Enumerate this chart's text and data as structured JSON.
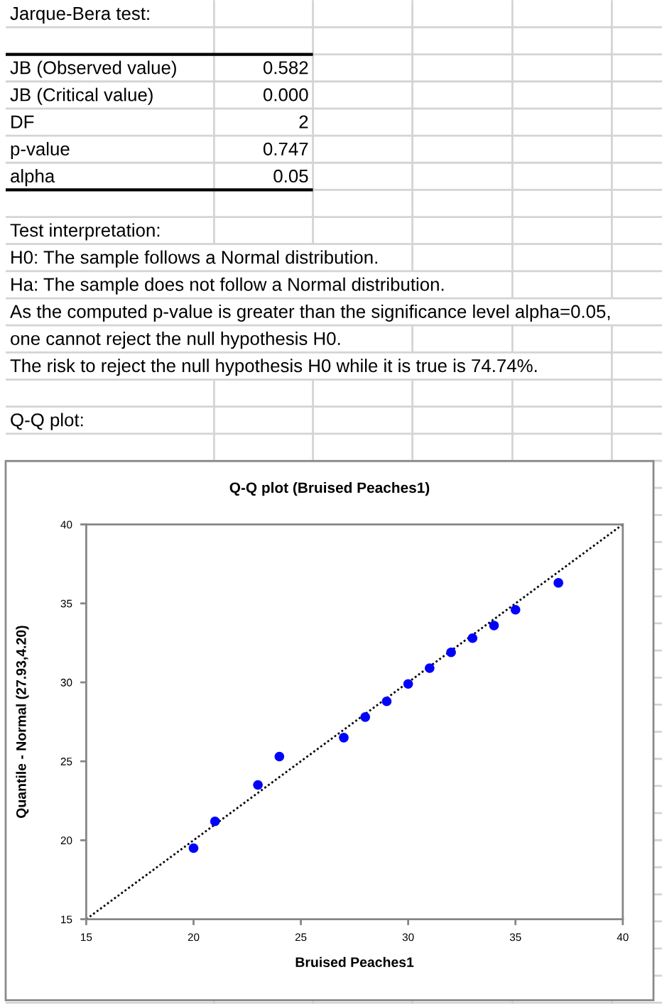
{
  "chart_data": {
    "type": "scatter",
    "title": "Q-Q plot (Bruised Peaches1)",
    "xlabel": "Bruised Peaches1",
    "ylabel": "Quantile - Normal (27.93,4.20)",
    "xlim": [
      15,
      40
    ],
    "ylim": [
      15,
      40
    ],
    "xticks": [
      15,
      20,
      25,
      30,
      35,
      40
    ],
    "yticks": [
      15,
      20,
      25,
      30,
      35,
      40
    ],
    "marker": "circle",
    "series": [
      {
        "color": "#0000ff",
        "x": [
          20,
          21,
          23,
          24,
          27,
          28,
          29,
          30,
          31,
          32,
          33,
          34,
          35,
          37
        ],
        "values": [
          19.5,
          21.2,
          23.5,
          25.3,
          26.5,
          27.8,
          28.8,
          29.9,
          30.9,
          31.9,
          32.8,
          33.6,
          34.6,
          36.3
        ]
      },
      {
        "type": "line",
        "color": "#000000",
        "line_style": "dotted",
        "marker": "none",
        "x": [
          15,
          40
        ],
        "values": [
          15,
          40
        ]
      }
    ],
    "annotations": [
      "Jarque-Bera test:",
      "JB (Observed value)",
      "0.582",
      "JB (Critical value)",
      "0.000",
      "DF",
      "2",
      "p-value",
      "0.747",
      "alpha",
      "0.05",
      "Test interpretation:",
      "H0: The sample follows a Normal distribution.",
      "Ha: The sample does not follow a Normal distribution.",
      "As the computed p-value is greater than the significance level alpha=0.05,",
      "one cannot reject the null hypothesis H0.",
      "The risk to reject the null hypothesis H0 while it is true is 74.74%.",
      "Q-Q plot:"
    ]
  }
}
